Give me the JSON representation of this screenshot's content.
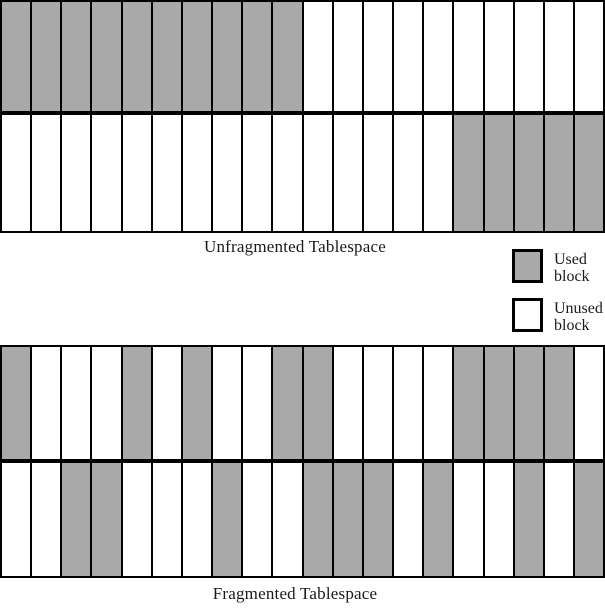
{
  "colors": {
    "used_block": "#a9a9a9",
    "unused_block": "#ffffff",
    "border": "#000000"
  },
  "legend": {
    "used_label": "Used block",
    "unused_label": "Unused block"
  },
  "sections": [
    {
      "id": "unfragmented",
      "label": "Unfragmented Tablespace",
      "rows": [
        [
          "used",
          "used",
          "used",
          "used",
          "used",
          "used",
          "used",
          "used",
          "used",
          "used",
          "unused",
          "unused",
          "unused",
          "unused",
          "unused",
          "unused",
          "unused",
          "unused",
          "unused",
          "unused"
        ],
        [
          "unused",
          "unused",
          "unused",
          "unused",
          "unused",
          "unused",
          "unused",
          "unused",
          "unused",
          "unused",
          "unused",
          "unused",
          "unused",
          "unused",
          "unused",
          "used",
          "used",
          "used",
          "used",
          "used"
        ]
      ]
    },
    {
      "id": "fragmented",
      "label": "Fragmented Tablespace",
      "rows": [
        [
          "used",
          "unused",
          "unused",
          "unused",
          "used",
          "unused",
          "used",
          "unused",
          "unused",
          "used",
          "used",
          "unused",
          "unused",
          "unused",
          "unused",
          "used",
          "used",
          "used",
          "used",
          "unused"
        ],
        [
          "unused",
          "unused",
          "used",
          "used",
          "unused",
          "unused",
          "unused",
          "used",
          "unused",
          "unused",
          "used",
          "used",
          "used",
          "unused",
          "used",
          "unused",
          "unused",
          "used",
          "unused",
          "used"
        ]
      ]
    }
  ]
}
